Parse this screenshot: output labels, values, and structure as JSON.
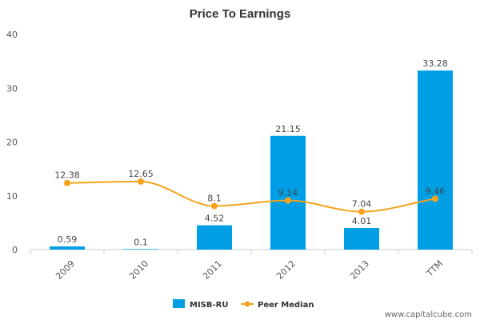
{
  "chart_data": {
    "type": "bar",
    "title": "Price To Earnings",
    "xlabel": "",
    "ylabel": "",
    "categories": [
      "2009",
      "2010",
      "2011",
      "2012",
      "2013",
      "TTM"
    ],
    "ylim": [
      0,
      40
    ],
    "yticks": [
      0,
      10,
      20,
      30,
      40
    ],
    "grid": false,
    "legend_position": "bottom-center",
    "series": [
      {
        "name": "MISB-RU",
        "kind": "bar",
        "color": "#009ee5",
        "values": [
          0.59,
          0.1,
          4.52,
          21.15,
          4.01,
          33.28
        ],
        "labels": [
          "0.59",
          "0.1",
          "4.52",
          "21.15",
          "4.01",
          "33.28"
        ]
      },
      {
        "name": "Peer Median",
        "kind": "line",
        "color": "#f5a31a",
        "values": [
          12.38,
          12.65,
          8.1,
          9.14,
          7.04,
          9.46
        ],
        "labels": [
          "12.38",
          "12.65",
          "8.1",
          "9.14",
          "7.04",
          "9.46"
        ]
      }
    ]
  },
  "watermark": "www.capitalcube.com"
}
